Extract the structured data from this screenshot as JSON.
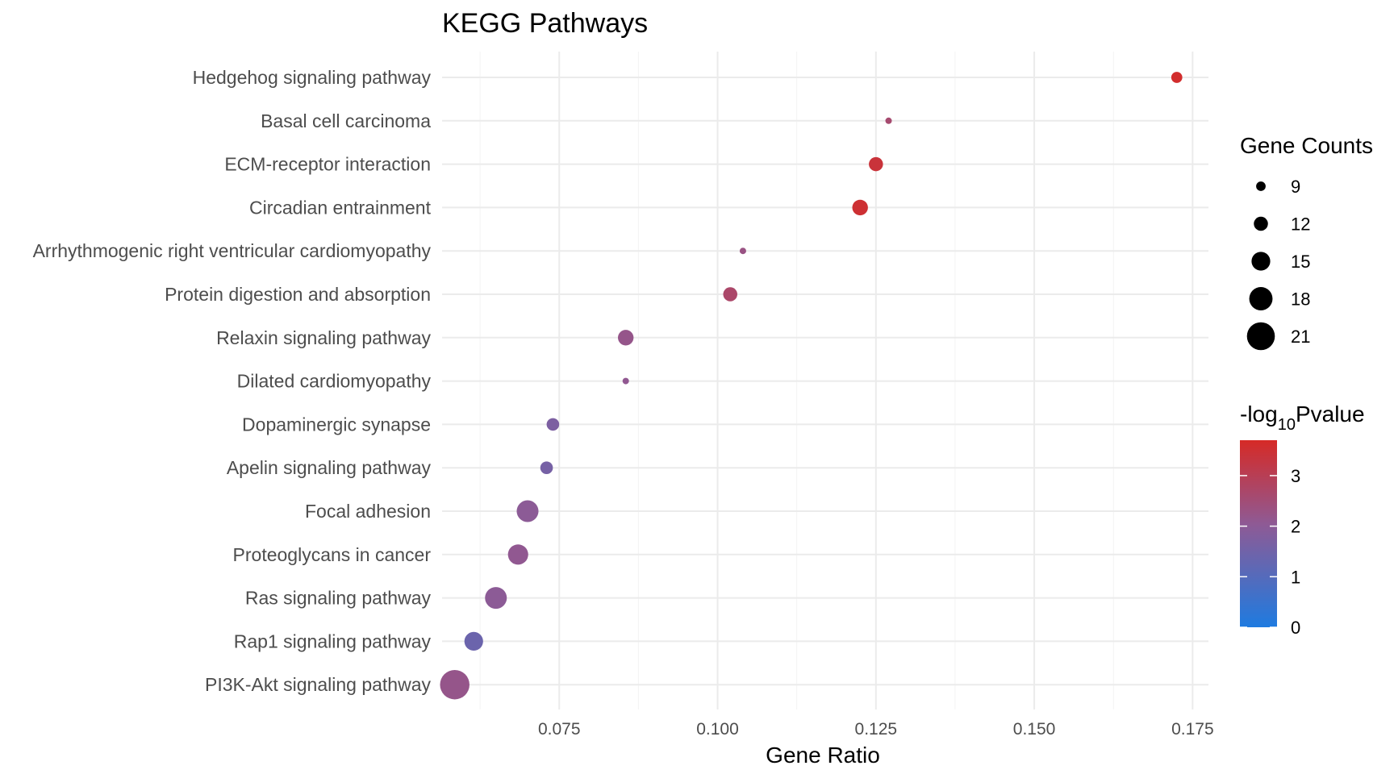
{
  "chart_data": {
    "type": "scatter",
    "title": "KEGG Pathways",
    "xlabel": "Gene Ratio",
    "ylabel": "",
    "xlim": [
      0.0565,
      0.1775
    ],
    "x_ticks": [
      0.075,
      0.1,
      0.125,
      0.15,
      0.175
    ],
    "x_tick_labels": [
      "0.075",
      "0.100",
      "0.125",
      "0.150",
      "0.175"
    ],
    "grid": true,
    "categories": [
      "Hedgehog signaling pathway",
      "Basal cell carcinoma",
      "ECM-receptor interaction",
      "Circadian entrainment",
      "Arrhythmogenic right ventricular cardiomyopathy",
      "Protein digestion and absorption",
      "Relaxin signaling pathway",
      "Dilated cardiomyopathy",
      "Dopaminergic synapse",
      "Apelin signaling pathway",
      "Focal adhesion",
      "Proteoglycans in cancer",
      "Ras signaling pathway",
      "Rap1 signaling pathway",
      "PI3K-Akt signaling pathway"
    ],
    "points": [
      {
        "pathway": "Hedgehog signaling pathway",
        "gene_ratio": 0.1725,
        "count": 10,
        "neg_log10_pvalue": 3.6
      },
      {
        "pathway": "Basal cell carcinoma",
        "gene_ratio": 0.127,
        "count": 7,
        "neg_log10_pvalue": 2.6
      },
      {
        "pathway": "ECM-receptor interaction",
        "gene_ratio": 0.125,
        "count": 12,
        "neg_log10_pvalue": 3.4
      },
      {
        "pathway": "Circadian entrainment",
        "gene_ratio": 0.1225,
        "count": 13,
        "neg_log10_pvalue": 3.5
      },
      {
        "pathway": "Arrhythmogenic right ventricular cardiomyopathy",
        "gene_ratio": 0.104,
        "count": 7,
        "neg_log10_pvalue": 2.3
      },
      {
        "pathway": "Protein digestion and absorption",
        "gene_ratio": 0.102,
        "count": 12,
        "neg_log10_pvalue": 2.7
      },
      {
        "pathway": "Relaxin signaling pathway",
        "gene_ratio": 0.0855,
        "count": 13,
        "neg_log10_pvalue": 2.2
      },
      {
        "pathway": "Dilated cardiomyopathy",
        "gene_ratio": 0.0855,
        "count": 7,
        "neg_log10_pvalue": 2.1
      },
      {
        "pathway": "Dopaminergic synapse",
        "gene_ratio": 0.074,
        "count": 11,
        "neg_log10_pvalue": 1.7
      },
      {
        "pathway": "Apelin signaling pathway",
        "gene_ratio": 0.073,
        "count": 11,
        "neg_log10_pvalue": 1.6
      },
      {
        "pathway": "Focal adhesion",
        "gene_ratio": 0.07,
        "count": 17,
        "neg_log10_pvalue": 2.0
      },
      {
        "pathway": "Proteoglycans in cancer",
        "gene_ratio": 0.0685,
        "count": 16,
        "neg_log10_pvalue": 2.1
      },
      {
        "pathway": "Ras signaling pathway",
        "gene_ratio": 0.065,
        "count": 17,
        "neg_log10_pvalue": 2.0
      },
      {
        "pathway": "Rap1 signaling pathway",
        "gene_ratio": 0.0615,
        "count": 15,
        "neg_log10_pvalue": 1.4
      },
      {
        "pathway": "PI3K-Akt signaling pathway",
        "gene_ratio": 0.0585,
        "count": 22,
        "neg_log10_pvalue": 2.2
      }
    ],
    "size_legend": {
      "title": "Gene Counts",
      "breaks": [
        9,
        12,
        15,
        18,
        21
      ],
      "labels": [
        "9",
        "12",
        "15",
        "18",
        "21"
      ]
    },
    "color_legend": {
      "title_prefix": "-log",
      "title_subscript": "10",
      "title_suffix": "Pvalue",
      "breaks": [
        0,
        1,
        2,
        3
      ],
      "labels": [
        "0",
        "1",
        "2",
        "3"
      ],
      "range": [
        0,
        3.7
      ],
      "low_color": "#1e7be0",
      "mid_color": "#8e5a95",
      "high_color": "#d62a26"
    },
    "legend_placement": "right"
  }
}
